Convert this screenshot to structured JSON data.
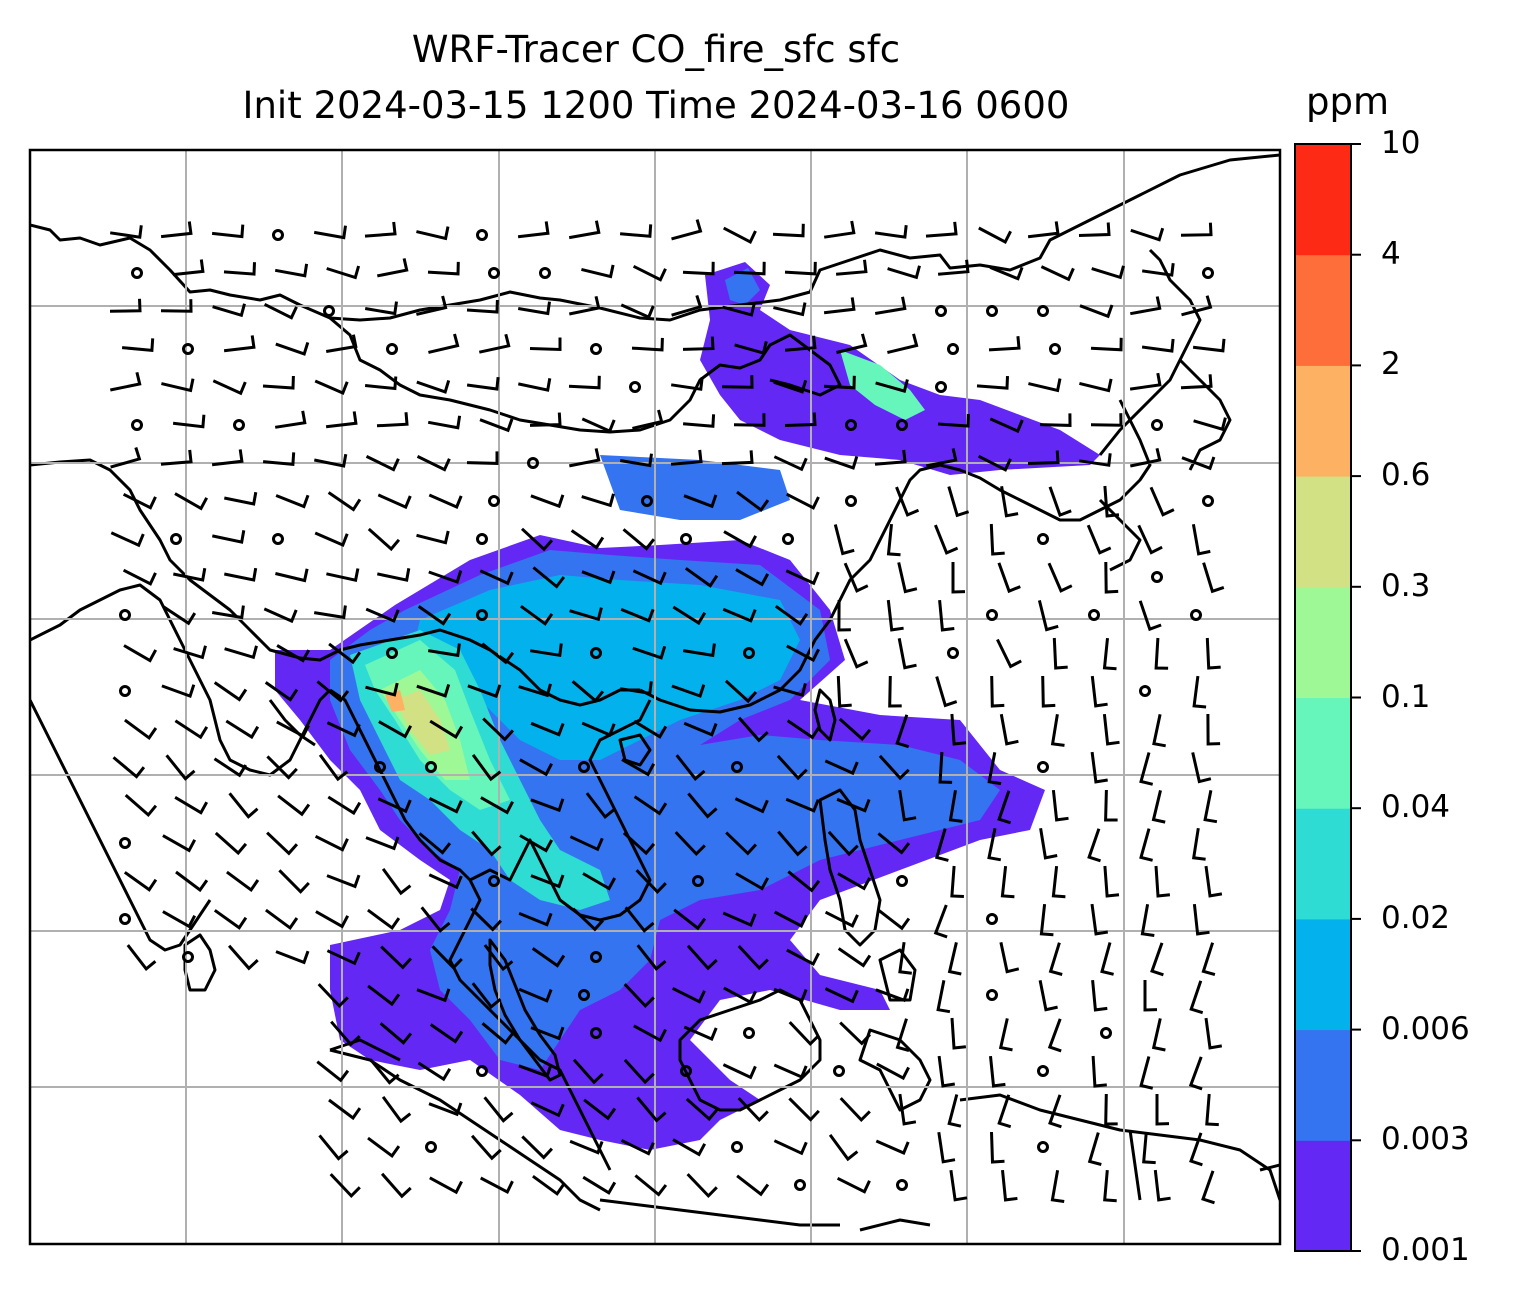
{
  "title_line1": "WRF-Tracer CO_fire_sfc sfc",
  "title_line2": "Init 2024-03-15 1200 Time 2024-03-16 0600",
  "colorbar": {
    "unit": "ppm",
    "levels": [
      "0.001",
      "0.003",
      "0.006",
      "0.02",
      "0.04",
      "0.1",
      "0.3",
      "0.6",
      "2",
      "4",
      "10"
    ],
    "colors": [
      "#6428f5",
      "#3574f0",
      "#03b2ec",
      "#2fdcd4",
      "#66f6bc",
      "#9ef895",
      "#d1e184",
      "#fdb162",
      "#fe6e3b",
      "#fd2a15"
    ]
  },
  "map": {
    "field_colors": {
      "ocean_bg": "#ffffff",
      "coast": "#000000",
      "grid": "#b0b0b0",
      "barb": "#000000"
    }
  }
}
